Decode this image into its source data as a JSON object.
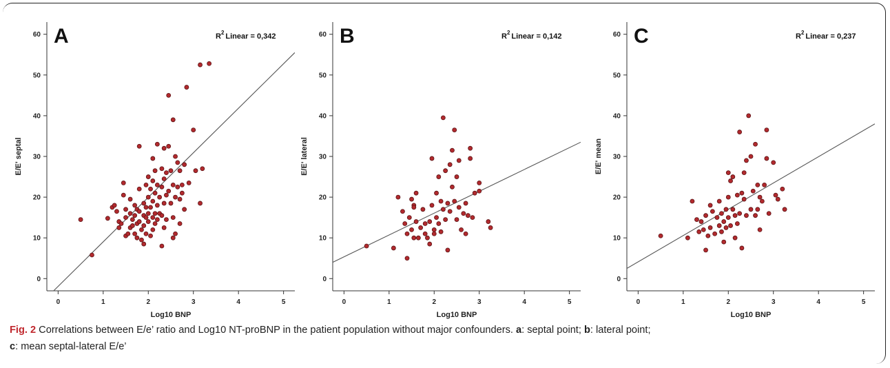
{
  "chart_data": [
    {
      "type": "scatter",
      "panel_label": "A",
      "r2_label": "R",
      "r2_sup": "2",
      "r2_text": "Linear = 0,342",
      "xlabel": "Log10 BNP",
      "ylabel": "E/E' septal",
      "xlim": [
        -0.25,
        5.25
      ],
      "ylim": [
        -3,
        63
      ],
      "xticks": [
        0,
        1,
        2,
        3,
        4,
        5
      ],
      "yticks": [
        0,
        10,
        20,
        30,
        40,
        50,
        60
      ],
      "fit_line": {
        "x": [
          -0.1,
          5.25
        ],
        "y": [
          -3,
          55.5
        ]
      },
      "points": [
        [
          0.5,
          14.5
        ],
        [
          0.75,
          5.8
        ],
        [
          1.1,
          14.8
        ],
        [
          1.2,
          17.5
        ],
        [
          1.25,
          18
        ],
        [
          1.3,
          16.5
        ],
        [
          1.35,
          14
        ],
        [
          1.35,
          12.5
        ],
        [
          1.4,
          13.5
        ],
        [
          1.45,
          23.5
        ],
        [
          1.45,
          20.5
        ],
        [
          1.5,
          17
        ],
        [
          1.5,
          15
        ],
        [
          1.5,
          10.5
        ],
        [
          1.55,
          11
        ],
        [
          1.6,
          19.5
        ],
        [
          1.6,
          16
        ],
        [
          1.6,
          12.5
        ],
        [
          1.65,
          14.5
        ],
        [
          1.65,
          13
        ],
        [
          1.7,
          18
        ],
        [
          1.7,
          15.5
        ],
        [
          1.7,
          11
        ],
        [
          1.75,
          17
        ],
        [
          1.75,
          13.5
        ],
        [
          1.75,
          10
        ],
        [
          1.8,
          32.5
        ],
        [
          1.8,
          22
        ],
        [
          1.8,
          16.5
        ],
        [
          1.8,
          14
        ],
        [
          1.85,
          12
        ],
        [
          1.85,
          9.5
        ],
        [
          1.9,
          18.5
        ],
        [
          1.9,
          15.5
        ],
        [
          1.9,
          13
        ],
        [
          1.9,
          8.5
        ],
        [
          1.95,
          23
        ],
        [
          1.95,
          17.5
        ],
        [
          1.95,
          15
        ],
        [
          1.95,
          11
        ],
        [
          2.0,
          25
        ],
        [
          2.0,
          20
        ],
        [
          2.0,
          16
        ],
        [
          2.0,
          14
        ],
        [
          2.05,
          22
        ],
        [
          2.05,
          17.5
        ],
        [
          2.05,
          10.5
        ],
        [
          2.1,
          29.5
        ],
        [
          2.1,
          24
        ],
        [
          2.1,
          19
        ],
        [
          2.1,
          15
        ],
        [
          2.1,
          12
        ],
        [
          2.15,
          26.5
        ],
        [
          2.15,
          21
        ],
        [
          2.15,
          16
        ],
        [
          2.15,
          13.5
        ],
        [
          2.2,
          33
        ],
        [
          2.2,
          23
        ],
        [
          2.2,
          18
        ],
        [
          2.2,
          14.5
        ],
        [
          2.25,
          20
        ],
        [
          2.25,
          16
        ],
        [
          2.3,
          27
        ],
        [
          2.3,
          22.5
        ],
        [
          2.3,
          15.5
        ],
        [
          2.3,
          8
        ],
        [
          2.35,
          32
        ],
        [
          2.35,
          24.5
        ],
        [
          2.35,
          18.5
        ],
        [
          2.35,
          12.5
        ],
        [
          2.4,
          26
        ],
        [
          2.4,
          20.5
        ],
        [
          2.4,
          14.5
        ],
        [
          2.45,
          45
        ],
        [
          2.45,
          32.5
        ],
        [
          2.45,
          21.5
        ],
        [
          2.5,
          26.5
        ],
        [
          2.5,
          18.5
        ],
        [
          2.55,
          39
        ],
        [
          2.55,
          23
        ],
        [
          2.55,
          15
        ],
        [
          2.6,
          30
        ],
        [
          2.6,
          20
        ],
        [
          2.6,
          11
        ],
        [
          2.65,
          28.5
        ],
        [
          2.65,
          22.5
        ],
        [
          2.7,
          26.5
        ],
        [
          2.7,
          19.5
        ],
        [
          2.7,
          13.5
        ],
        [
          2.75,
          23
        ],
        [
          2.75,
          21
        ],
        [
          2.8,
          28
        ],
        [
          2.8,
          17
        ],
        [
          2.85,
          47
        ],
        [
          2.9,
          23.5
        ],
        [
          3.0,
          36.5
        ],
        [
          3.05,
          26.5
        ],
        [
          3.15,
          52.5
        ],
        [
          3.15,
          18.5
        ],
        [
          3.2,
          27
        ],
        [
          3.35,
          52.8
        ],
        [
          2.55,
          10
        ]
      ]
    },
    {
      "type": "scatter",
      "panel_label": "B",
      "r2_label": "R",
      "r2_sup": "2",
      "r2_text": "Linear = 0,142",
      "xlabel": "Log10 BNP",
      "ylabel": "E/E' lateral",
      "xlim": [
        -0.25,
        5.25
      ],
      "ylim": [
        -3,
        63
      ],
      "xticks": [
        0,
        1,
        2,
        3,
        4,
        5
      ],
      "yticks": [
        0,
        10,
        20,
        30,
        40,
        50,
        60
      ],
      "fit_line": {
        "x": [
          -0.25,
          5.25
        ],
        "y": [
          4,
          33.5
        ]
      },
      "points": [
        [
          0.5,
          8
        ],
        [
          1.1,
          7.5
        ],
        [
          1.2,
          20
        ],
        [
          1.3,
          16.5
        ],
        [
          1.35,
          13.5
        ],
        [
          1.4,
          11
        ],
        [
          1.4,
          5
        ],
        [
          1.45,
          15
        ],
        [
          1.5,
          19.5
        ],
        [
          1.5,
          12
        ],
        [
          1.55,
          18
        ],
        [
          1.55,
          10
        ],
        [
          1.6,
          21
        ],
        [
          1.6,
          14
        ],
        [
          1.65,
          10
        ],
        [
          1.7,
          12.5
        ],
        [
          1.75,
          17
        ],
        [
          1.8,
          13.5
        ],
        [
          1.8,
          11
        ],
        [
          1.85,
          10
        ],
        [
          1.9,
          14
        ],
        [
          1.9,
          8.5
        ],
        [
          1.95,
          29.5
        ],
        [
          1.95,
          18
        ],
        [
          2.0,
          12
        ],
        [
          2.05,
          21
        ],
        [
          2.05,
          15
        ],
        [
          2.1,
          25
        ],
        [
          2.1,
          13.5
        ],
        [
          2.15,
          19
        ],
        [
          2.15,
          11.5
        ],
        [
          2.2,
          39.5
        ],
        [
          2.2,
          17
        ],
        [
          2.25,
          26.5
        ],
        [
          2.25,
          14.5
        ],
        [
          2.3,
          18.5
        ],
        [
          2.3,
          7
        ],
        [
          2.35,
          28
        ],
        [
          2.35,
          16.5
        ],
        [
          2.4,
          31.5
        ],
        [
          2.4,
          22.5
        ],
        [
          2.45,
          36.5
        ],
        [
          2.45,
          19
        ],
        [
          2.5,
          25
        ],
        [
          2.5,
          14.5
        ],
        [
          2.55,
          29
        ],
        [
          2.55,
          17.5
        ],
        [
          2.6,
          12
        ],
        [
          2.65,
          16
        ],
        [
          2.7,
          18.5
        ],
        [
          2.7,
          11
        ],
        [
          2.75,
          15.5
        ],
        [
          2.8,
          32
        ],
        [
          2.8,
          29.5
        ],
        [
          2.85,
          15
        ],
        [
          2.9,
          21
        ],
        [
          3.0,
          23.5
        ],
        [
          3.0,
          21.5
        ],
        [
          3.2,
          14
        ],
        [
          3.25,
          12.5
        ],
        [
          1.55,
          17.5
        ],
        [
          2.0,
          11
        ]
      ]
    },
    {
      "type": "scatter",
      "panel_label": "C",
      "r2_label": "R",
      "r2_sup": "2",
      "r2_text": "Linear = 0,237",
      "xlabel": "Log10 BNP",
      "ylabel": "E/E' mean",
      "xlim": [
        -0.25,
        5.25
      ],
      "ylim": [
        -3,
        63
      ],
      "xticks": [
        0,
        1,
        2,
        3,
        4,
        5
      ],
      "yticks": [
        0,
        10,
        20,
        30,
        40,
        50,
        60
      ],
      "fit_line": {
        "x": [
          -0.25,
          5.25
        ],
        "y": [
          2.5,
          38
        ]
      },
      "points": [
        [
          0.5,
          10.5
        ],
        [
          1.1,
          10
        ],
        [
          1.2,
          19
        ],
        [
          1.3,
          14.5
        ],
        [
          1.35,
          11.5
        ],
        [
          1.4,
          14
        ],
        [
          1.45,
          12
        ],
        [
          1.5,
          7
        ],
        [
          1.5,
          15.5
        ],
        [
          1.55,
          10.5
        ],
        [
          1.6,
          18
        ],
        [
          1.6,
          12.5
        ],
        [
          1.65,
          16.5
        ],
        [
          1.7,
          11
        ],
        [
          1.75,
          15
        ],
        [
          1.8,
          19
        ],
        [
          1.8,
          13
        ],
        [
          1.85,
          11.5
        ],
        [
          1.9,
          14
        ],
        [
          1.9,
          9
        ],
        [
          1.95,
          17
        ],
        [
          1.95,
          12.5
        ],
        [
          2.0,
          26
        ],
        [
          2.0,
          20
        ],
        [
          2.0,
          15
        ],
        [
          2.05,
          24
        ],
        [
          2.05,
          13
        ],
        [
          2.1,
          25
        ],
        [
          2.1,
          17
        ],
        [
          2.15,
          15.5
        ],
        [
          2.15,
          10
        ],
        [
          2.2,
          20.5
        ],
        [
          2.25,
          36
        ],
        [
          2.25,
          16
        ],
        [
          2.3,
          21
        ],
        [
          2.3,
          7.5
        ],
        [
          2.35,
          26
        ],
        [
          2.35,
          19.5
        ],
        [
          2.4,
          29
        ],
        [
          2.4,
          15.5
        ],
        [
          2.45,
          40
        ],
        [
          2.5,
          30
        ],
        [
          2.5,
          17
        ],
        [
          2.55,
          21.5
        ],
        [
          2.6,
          33
        ],
        [
          2.6,
          15.5
        ],
        [
          2.65,
          23
        ],
        [
          2.65,
          17
        ],
        [
          2.7,
          20
        ],
        [
          2.7,
          12
        ],
        [
          2.75,
          19
        ],
        [
          2.8,
          23
        ],
        [
          2.85,
          36.5
        ],
        [
          2.85,
          29.5
        ],
        [
          2.9,
          16
        ],
        [
          3.0,
          28.5
        ],
        [
          3.05,
          20.5
        ],
        [
          3.1,
          19.5
        ],
        [
          3.2,
          22
        ],
        [
          3.25,
          17
        ],
        [
          2.2,
          13.5
        ],
        [
          1.85,
          16
        ]
      ]
    }
  ],
  "caption": {
    "fig_label": "Fig. 2",
    "text": " Correlations between E/e’ ratio and Log10 NT-proBNP in the patient population without major confounders. ",
    "a_key": "a",
    "a_text": ": septal point; ",
    "b_key": "b",
    "b_text": ": lateral point;",
    "c_key": "c",
    "c_text": ": mean septal-lateral E/e’"
  },
  "colors": {
    "point_fill": "#b22a2e",
    "point_stroke": "#5a1214",
    "line": "#555555",
    "fig_label": "#c0272d"
  }
}
